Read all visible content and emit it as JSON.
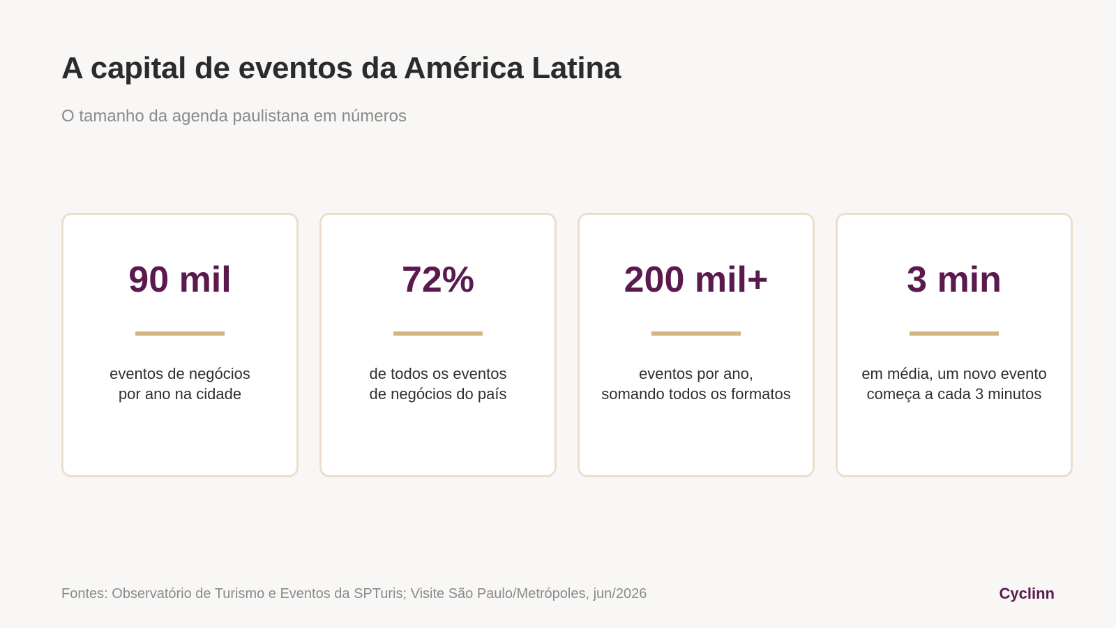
{
  "header": {
    "title": "A capital de eventos da América Latina",
    "subtitle": "O tamanho da agenda paulistana em números"
  },
  "stats": [
    {
      "value": "90 mil",
      "description_lines": [
        "eventos de negócios",
        "por ano na cidade"
      ]
    },
    {
      "value": "72%",
      "description_lines": [
        "de todos os eventos",
        "de negócios do país"
      ]
    },
    {
      "value": "200 mil+",
      "description_lines": [
        "eventos por ano,",
        "somando todos os formatos"
      ]
    },
    {
      "value": "3 min",
      "description_lines": [
        "em média, um novo evento",
        "começa a cada 3 minutos"
      ]
    }
  ],
  "footer": {
    "source": "Fontes: Observatório de Turismo e Eventos da SPTuris; Visite São Paulo/Metrópoles, jun/2026",
    "brand": "Cyclinn"
  },
  "colors": {
    "background": "#f8f7f5",
    "accent": "#5b1a4e",
    "rule": "#d3b483",
    "card_border": "#ebdfcb",
    "title_text": "#2b2b2b",
    "muted_text": "#8a8a8a"
  }
}
